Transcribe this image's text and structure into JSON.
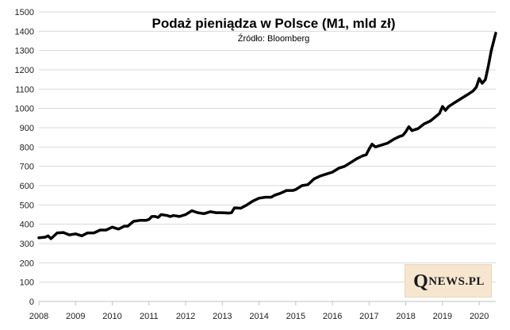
{
  "chart_data": {
    "type": "line",
    "title": "Podaż pieniądza w Polsce (M1, mld zł)",
    "subtitle": "Źródło: Bloomberg",
    "xlabel": "",
    "ylabel": "",
    "xlim": [
      2008,
      2020.45
    ],
    "ylim": [
      0,
      1500
    ],
    "y_ticks": [
      0,
      100,
      200,
      300,
      400,
      500,
      600,
      700,
      800,
      900,
      1000,
      1100,
      1200,
      1300,
      1400,
      1500
    ],
    "x_ticks": [
      2008,
      2009,
      2010,
      2011,
      2012,
      2013,
      2014,
      2015,
      2016,
      2017,
      2018,
      2019,
      2020
    ],
    "grid": "horizontal",
    "line_color": "#000000",
    "series": [
      {
        "x": [
          2008.0,
          2008.17,
          2008.25,
          2008.33,
          2008.5,
          2008.67,
          2008.83,
          2009.0,
          2009.17,
          2009.33,
          2009.5,
          2009.67,
          2009.83,
          2010.0,
          2010.17,
          2010.33,
          2010.42,
          2010.58,
          2010.75,
          2010.92,
          2011.0,
          2011.08,
          2011.17,
          2011.25,
          2011.33,
          2011.5,
          2011.58,
          2011.67,
          2011.83,
          2012.0,
          2012.17,
          2012.33,
          2012.5,
          2012.67,
          2012.83,
          2013.0,
          2013.17,
          2013.25,
          2013.33,
          2013.5,
          2013.67,
          2013.83,
          2014.0,
          2014.17,
          2014.33,
          2014.42,
          2014.58,
          2014.75,
          2014.92,
          2015.0,
          2015.17,
          2015.33,
          2015.5,
          2015.67,
          2015.83,
          2016.0,
          2016.17,
          2016.33,
          2016.5,
          2016.67,
          2016.83,
          2016.92,
          2017.0,
          2017.08,
          2017.17,
          2017.25,
          2017.33,
          2017.5,
          2017.67,
          2017.83,
          2017.92,
          2018.0,
          2018.08,
          2018.17,
          2018.25,
          2018.33,
          2018.5,
          2018.67,
          2018.83,
          2018.92,
          2019.0,
          2019.08,
          2019.17,
          2019.33,
          2019.5,
          2019.67,
          2019.83,
          2019.92,
          2020.0,
          2020.08,
          2020.17,
          2020.25,
          2020.33,
          2020.45
        ],
        "values": [
          330,
          333,
          340,
          325,
          355,
          357,
          345,
          350,
          340,
          355,
          355,
          370,
          370,
          385,
          375,
          390,
          390,
          415,
          420,
          420,
          425,
          440,
          440,
          435,
          450,
          445,
          440,
          445,
          440,
          450,
          470,
          460,
          455,
          465,
          460,
          460,
          458,
          460,
          485,
          483,
          500,
          520,
          535,
          540,
          540,
          550,
          560,
          575,
          575,
          580,
          600,
          605,
          635,
          650,
          660,
          670,
          690,
          700,
          720,
          740,
          755,
          760,
          790,
          815,
          800,
          805,
          810,
          820,
          840,
          855,
          860,
          880,
          905,
          885,
          890,
          895,
          920,
          935,
          960,
          975,
          1010,
          990,
          1010,
          1030,
          1050,
          1070,
          1090,
          1110,
          1155,
          1130,
          1150,
          1220,
          1300,
          1390
        ]
      }
    ]
  },
  "logo": {
    "initial": "Q",
    "rest": "NEWS.PL"
  }
}
